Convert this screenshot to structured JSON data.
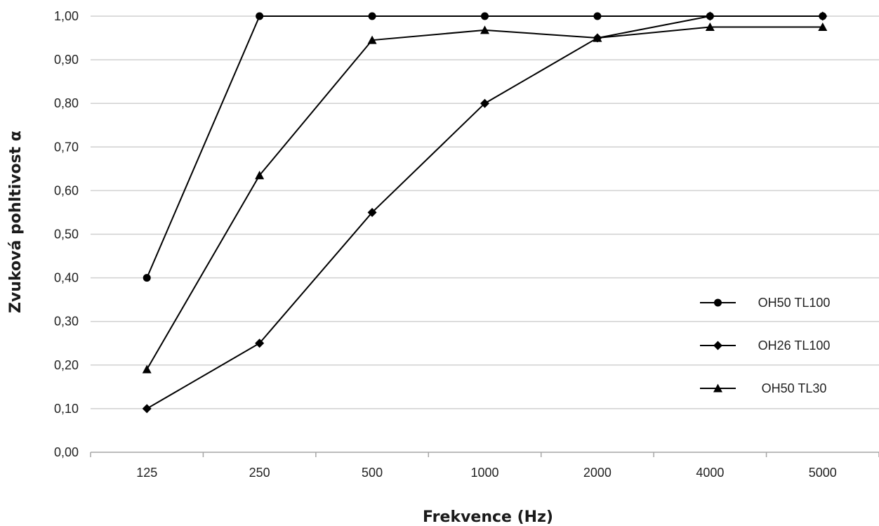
{
  "chart_data": {
    "type": "line",
    "xlabel": "Frekvence (Hz)",
    "ylabel": "Zvuková pohltivost α",
    "categories": [
      "125",
      "250",
      "500",
      "1000",
      "2000",
      "4000",
      "5000"
    ],
    "ylim": [
      0,
      1
    ],
    "y_ticks": [
      "0,00",
      "0,10",
      "0,20",
      "0,30",
      "0,40",
      "0,50",
      "0,60",
      "0,70",
      "0,80",
      "0,90",
      "1,00"
    ],
    "grid": true,
    "legend_position": "right",
    "series": [
      {
        "name": "OH50 TL100",
        "marker": "circle",
        "points": [
          {
            "x": "125",
            "y": 0.4
          },
          {
            "x": "250",
            "y": 1.0
          },
          {
            "x": "500",
            "y": 1.0
          },
          {
            "x": "1000",
            "y": 1.0
          },
          {
            "x": "2000",
            "y": 1.0
          },
          {
            "x": "4000",
            "y": 1.0
          },
          {
            "x": "5000",
            "y": 1.0
          }
        ]
      },
      {
        "name": "OH26 TL100",
        "marker": "diamond",
        "points": [
          {
            "x": "125",
            "y": 0.1
          },
          {
            "x": "250",
            "y": 0.25
          },
          {
            "x": "500",
            "y": 0.55
          },
          {
            "x": "1000",
            "y": 0.8
          },
          {
            "x": "2000",
            "y": 0.95
          },
          {
            "x": "4000",
            "y": 1.0
          },
          {
            "x": "5000",
            "y": 1.0
          }
        ]
      },
      {
        "name": "OH50 TL30",
        "marker": "triangle",
        "points": [
          {
            "x": "125",
            "y": 0.19
          },
          {
            "x": "250",
            "y": 0.635
          },
          {
            "x": "500",
            "y": 0.945
          },
          {
            "x": "1000",
            "y": 0.968
          },
          {
            "x": "2000",
            "y": 0.95
          },
          {
            "x": "4000",
            "y": 0.975
          },
          {
            "x": "5000",
            "y": 0.975
          }
        ]
      }
    ],
    "colors": {
      "line": "#000000",
      "grid": "#d0d0d0",
      "axis": "#a6a6a6"
    }
  }
}
